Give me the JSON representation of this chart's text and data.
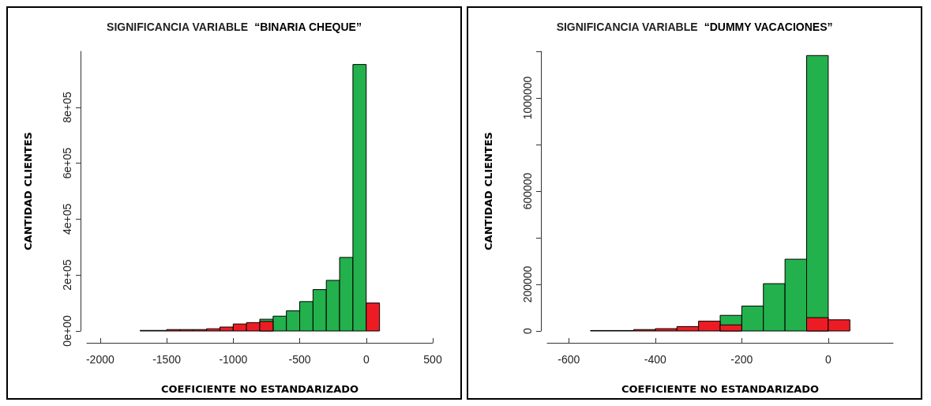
{
  "chart_data": [
    {
      "type": "histogram",
      "title": "SIGNIFICANCIA VARIABLE  “BINARIA CHEQUE”",
      "xlabel": "COEFICIENTE NO ESTANDARIZADO",
      "ylabel": "CANTIDAD CLIENTES",
      "bins": [
        -1700,
        -1600,
        -1500,
        -1400,
        -1300,
        -1200,
        -1100,
        -1000,
        -900,
        -800,
        -700,
        -600,
        -500,
        -400,
        -300,
        -200,
        -100,
        0,
        100
      ],
      "series": [
        {
          "color": "#22b14c",
          "values": [
            null,
            null,
            null,
            null,
            null,
            null,
            null,
            null,
            null,
            42000,
            53000,
            72000,
            105000,
            148000,
            181000,
            263000,
            953000,
            null
          ]
        },
        {
          "color": "#ed1c24",
          "values": [
            2000,
            2000,
            5000,
            5000,
            5000,
            8000,
            14000,
            25000,
            30000,
            34000,
            null,
            null,
            null,
            null,
            null,
            null,
            null,
            100000
          ]
        }
      ],
      "xlim": [
        -2100,
        500
      ],
      "xticks": [
        -2000,
        -1500,
        -1000,
        -500,
        0,
        500
      ],
      "ylim": [
        0,
        1000000
      ],
      "yticks": [
        {
          "value": 0,
          "label": "0e+00"
        },
        {
          "value": 200000,
          "label": "2e+05"
        },
        {
          "value": 400000,
          "label": "4e+05"
        },
        {
          "value": 600000,
          "label": "6e+05"
        },
        {
          "value": 800000,
          "label": "8e+05"
        }
      ]
    },
    {
      "type": "histogram",
      "title": "SIGNIFICANCIA VARIABLE  “DUMMY VACACIONES”",
      "xlabel": "COEFICIENTE NO ESTANDARIZADO",
      "ylabel": "CANTIDAD CLIENTES",
      "bins": [
        -550,
        -500,
        -450,
        -400,
        -350,
        -300,
        -250,
        -200,
        -150,
        -100,
        -50,
        0,
        50
      ],
      "series": [
        {
          "color": "#22b14c",
          "values": [
            null,
            null,
            null,
            null,
            null,
            null,
            67000,
            107000,
            203000,
            308000,
            1182000,
            null
          ]
        },
        {
          "color": "#ed1c24",
          "values": [
            2000,
            2000,
            6000,
            10000,
            19000,
            42000,
            26000,
            null,
            null,
            null,
            57000,
            48000
          ]
        }
      ],
      "xlim": [
        -650,
        150
      ],
      "xticks": [
        -600,
        -400,
        -200,
        0
      ],
      "ylim": [
        0,
        1200000
      ],
      "yticks": [
        0,
        200000,
        {
          "value": 400000,
          "label": null
        },
        600000,
        {
          "value": 800000,
          "label": null
        },
        1000000,
        {
          "value": 1200000,
          "label": null
        }
      ]
    }
  ]
}
